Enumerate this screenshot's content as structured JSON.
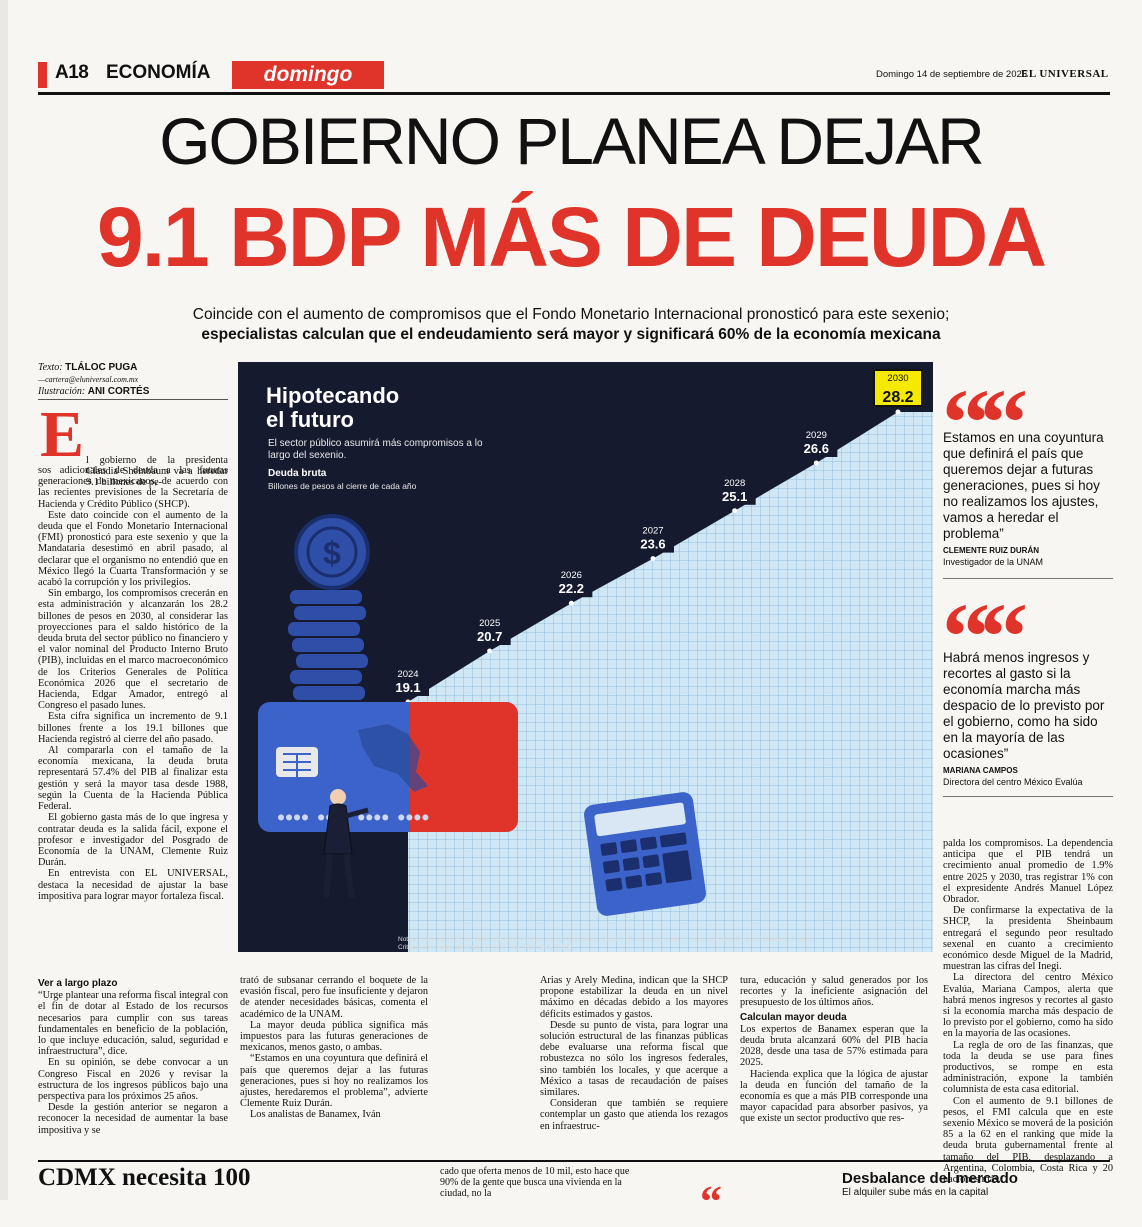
{
  "header": {
    "page": "A18",
    "section": "ECONOMÍA",
    "subsection": "domingo",
    "date": "Domingo 14 de septiembre de 2025",
    "paper": "EL UNIVERSAL"
  },
  "headline": {
    "line1": "GOBIERNO PLANEA DEJAR",
    "line2": "9.1 BDP MÁS DE DEUDA"
  },
  "dek": {
    "line1": "Coincide con el aumento de compromisos que el Fondo Monetario Internacional pronosticó para este sexenio;",
    "line2": "especialistas calculan que el endeudamiento será mayor y significará 60% de la economía mexicana"
  },
  "byline": {
    "text_label": "Texto:",
    "author": "TLÁLOC PUGA",
    "email": "—cartera@eluniversal.com.mx",
    "illus_label": "Ilustración:",
    "illustrator": "ANI CORTÉS"
  },
  "lede": {
    "dropcap": "E",
    "first": "l gobierno de la presidenta Claudia Sheinbaum va a heredar 9.1 billones de pe-",
    "paragraphs": [
      "sos adicionales de deuda a las futuras generaciones de mexicanos, de acuerdo con las recientes previsiones de la Secretaría de Hacienda y Crédito Público (SHCP).",
      "Este dato coincide con el aumento de la deuda que el Fondo Monetario Internacional (FMI) pronosticó para este sexenio y que la Mandataria desestimó en abril pasado, al declarar que el organismo no entendió que en México llegó la Cuarta Transformación y se acabó la corrupción y los privilegios.",
      "Sin embargo, los compromisos crecerán en esta administración y alcanzarán los 28.2 billones de pesos en 2030, al considerar las proyecciones para el saldo histórico de la deuda bruta del sector público no financiero y el valor nominal del Producto Interno Bruto (PIB), incluidas en el marco macroeconómico de los Criterios Generales de Política Económica 2026 que el secretario de Hacienda, Edgar Amador, entregó al Congreso el pasado lunes.",
      "Esta cifra significa un incremento de 9.1 billones frente a los 19.1 billones que Hacienda registró al cierre del año pasado.",
      "Al compararla con el tamaño de la economía mexicana, la deuda bruta representará 57.4% del PIB al finalizar esta gestión y será la mayor tasa desde 1988, según la Cuenta de la Hacienda Pública Federal.",
      "El gobierno gasta más de lo que ingresa y contratar deuda es la salida fácil, expone el profesor e investigador del Posgrado de Economía de la UNAM, Clemente Ruiz Durán.",
      "En entrevista con EL UNIVERSAL, destaca la necesidad de ajustar la base impositiva para lograr mayor fortaleza fiscal."
    ]
  },
  "col1": {
    "subhead": "Ver a largo plazo",
    "paragraphs": [
      "“Urge plantear una reforma fiscal integral con el fin de dotar al Estado de los recursos necesarios para cumplir con sus tareas fundamentales en beneficio de la población, lo que incluye educación, salud, seguridad e infraestructura”, dice.",
      "En su opinión, se debe convocar a un Congreso Fiscal en 2026 y revisar la estructura de los ingresos públicos bajo una perspectiva para los próximos 25 años.",
      "Desde la gestión anterior se negaron a reconocer la necesidad de aumentar la base impositiva y se"
    ]
  },
  "col2": {
    "paragraphs": [
      "trató de subsanar cerrando el boquete de la evasión fiscal, pero fue insuficiente y dejaron de atender necesidades básicas, comenta el académico de la UNAM.",
      "La mayor deuda pública significa más impuestos para las futuras generaciones de mexicanos, menos gasto, o ambas.",
      "“Estamos en una coyuntura que definirá el país que queremos dejar a las futuras generaciones, pues si hoy no realizamos los ajustes, heredaremos el problema”, advierte Clemente Ruiz Durán.",
      "Los analistas de Banamex, Iván"
    ]
  },
  "col3": {
    "paragraphs": [
      "Arias y Arely Medina, indican que la SHCP propone estabilizar la deuda en un nivel máximo en décadas debido a los mayores déficits estimados y gastos.",
      "Desde su punto de vista, para lograr una solución estructural de las finanzas públicas debe evaluarse una reforma fiscal que robustezca no sólo los ingresos federales, sino también los locales, y que acerque a México a tasas de recaudación de países similares.",
      "Consideran que también se requiere contemplar un gasto que atienda los rezagos en infraestruc-"
    ]
  },
  "col4": {
    "lead": "tura, educación y salud generados por los recortes y la ineficiente asignación del presupuesto de los últimos años.",
    "subhead": "Calculan mayor deuda",
    "paragraphs": [
      "Los expertos de Banamex esperan que la deuda bruta alcanzará 60% del PIB hacia 2028, desde una tasa de 57% estimada para 2025.",
      "Hacienda explica que la lógica de ajustar la deuda en función del tamaño de la economía es que a más PIB corresponde una mayor capacidad para absorber pasivos, ya que existe un sector productivo que res-"
    ]
  },
  "col5": {
    "lead": "palda los compromisos. La dependencia anticipa que el PIB tendrá un crecimiento anual promedio de 1.9% entre 2025 y 2030, tras registrar 1% con el expresidente Andrés Manuel López Obrador.",
    "paragraphs": [
      "De confirmarse la expectativa de la SHCP, la presidenta Sheinbaum entregará el segundo peor resultado sexenal en cuanto a crecimiento económico desde Miguel de la Madrid, muestran las cifras del Inegi.",
      "La directora del centro México Evalúa, Mariana Campos, alerta que habrá menos ingresos y recortes al gasto si la economía marcha más despacio de lo previsto por el gobierno, como ha sido en la mayoría de las ocasiones.",
      "La regla de oro de las finanzas, que toda la deuda se use para fines productivos, se rompe en esta administración, expone la también columnista de esta casa editorial.",
      "Con el aumento de 9.1 billones de pesos, el FMI calcula que en este sexenio México se moverá de la posición 85 a la 62 en el ranking que mide la deuda bruta gubernamental frente al tamaño del PIB, desplazando a Argentina, Colombia, Costa Rica y 20 naciones más."
    ]
  },
  "quotes": [
    {
      "mark": "“",
      "text": "Estamos en una coyuntura que definirá el país que queremos dejar a futuras generaciones, pues si hoy no realizamos los ajustes, vamos a heredar el problema”",
      "who": "CLEMENTE RUIZ DURÁN",
      "role": "Investigador de la UNAM"
    },
    {
      "mark": "“",
      "text": "Habrá menos ingresos y recortes al gasto si la economía marcha más despacio de lo previsto por el gobierno, como ha sido en la mayoría de las ocasiones”",
      "who": "MARIANA CAMPOS",
      "role": "Directora del centro México Evalúa"
    }
  ],
  "infographic": {
    "title_line1": "Hipotecando",
    "title_line2": "el futuro",
    "subtitle": "El sector público asumirá más compromisos a lo largo del sexenio.",
    "unit_heading": "Deuda bruta",
    "unit": "Billones de pesos al cierre de cada año",
    "note": "Nota: A partir de 2025, las cifras son proyecciones de la SHCP para el saldo histórico de la deuda bruta del sector público no financiero. Fuente: Criterios Generales de Política Económica 2026 de la SHCP.",
    "colors": {
      "background": "#151a2f",
      "area": "#cfe6f4",
      "highlight": "#f5e900",
      "accent": "#e0342b",
      "card": "#2e4ea8"
    }
  },
  "chart_data": {
    "type": "area",
    "title": "Hipotecando el futuro",
    "subtitle": "El sector público asumirá más compromisos a lo largo del sexenio.",
    "ylabel": "Billones de pesos al cierre de cada año",
    "categories": [
      "2024",
      "2025",
      "2026",
      "2027",
      "2028",
      "2029",
      "2030"
    ],
    "series": [
      {
        "name": "Deuda bruta",
        "values": [
          19.1,
          20.7,
          22.2,
          23.6,
          25.1,
          26.6,
          28.2
        ]
      }
    ],
    "highlight": "2030"
  },
  "bottom": {
    "headline": "CDMX necesita 100",
    "snippet": "cado que oferta menos de 10 mil, esto hace que 90% de la gente que busca una vivienda en la ciudad, no la",
    "right_head": "Desbalance del mercado",
    "right_sub": "El alquiler sube más en la capital"
  }
}
